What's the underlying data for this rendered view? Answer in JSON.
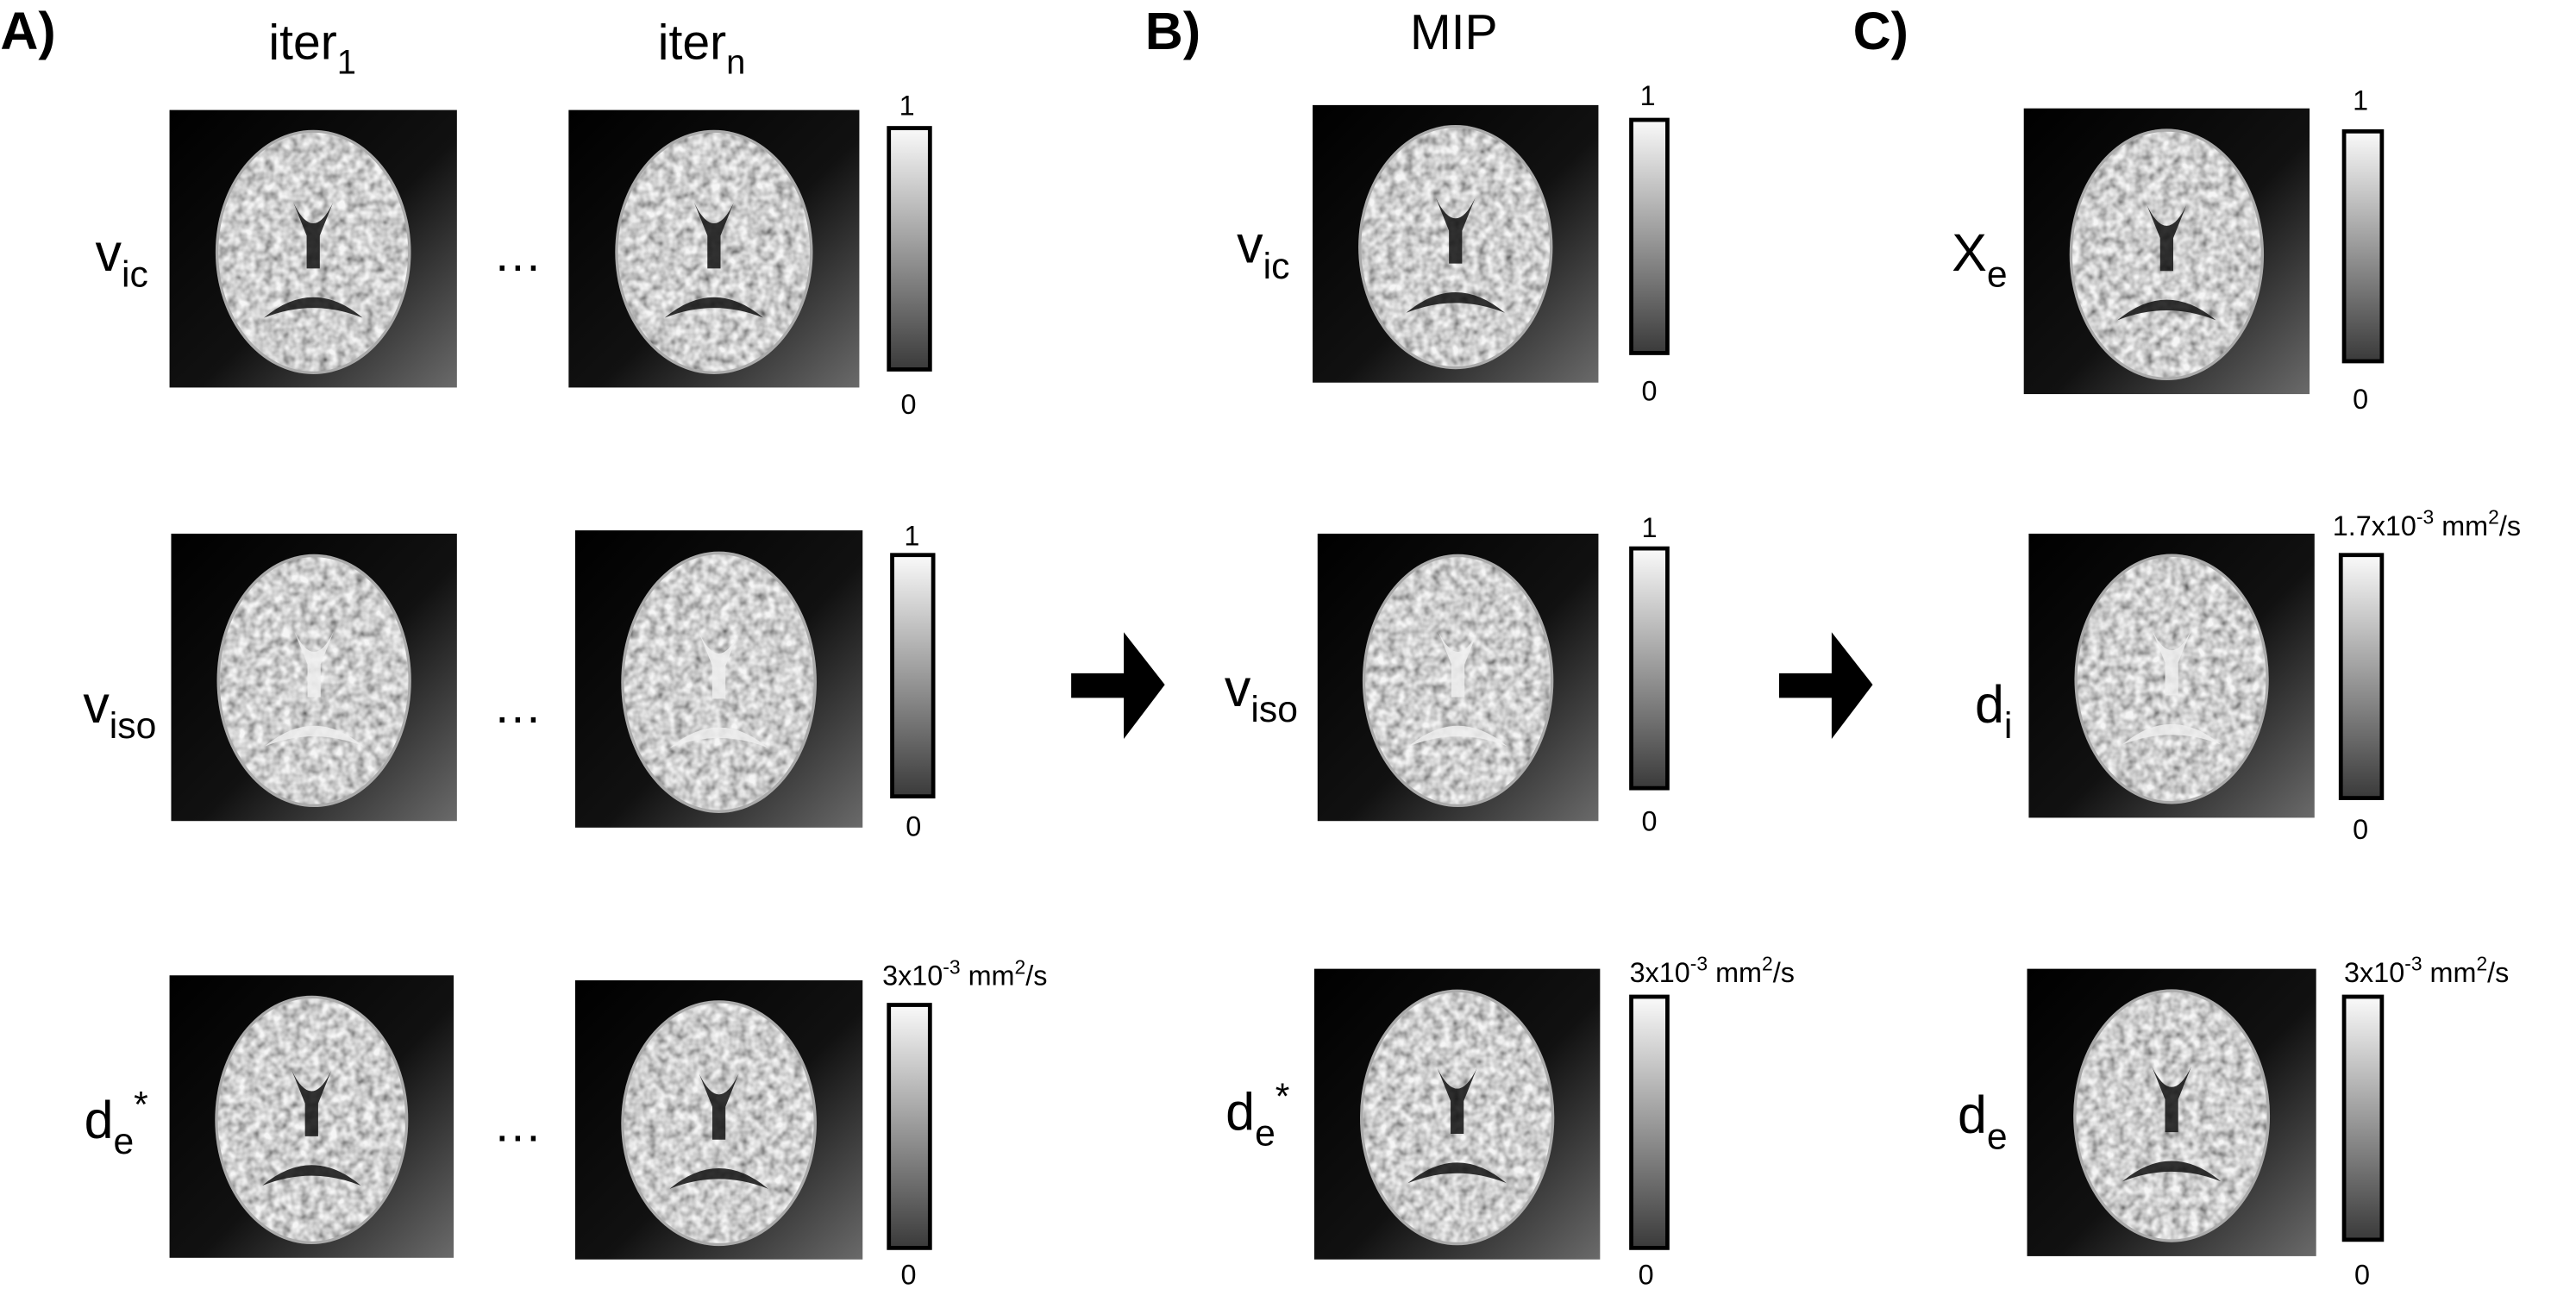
{
  "panel_labels": [
    "A)",
    "B)",
    "C)"
  ],
  "column_headers": [
    {
      "base": "iter",
      "sub": "1"
    },
    {
      "base": "iter",
      "sub": "n"
    },
    {
      "base": "MIP"
    }
  ],
  "ellipses": [
    "…",
    "…",
    "…"
  ],
  "panels": [
    {
      "rows": [
        {
          "label": {
            "base": "v",
            "sub": "ic"
          },
          "scale_max": {
            "pre": "1"
          },
          "scale_min": {
            "pre": "0"
          }
        },
        {
          "label": {
            "base": "v",
            "sub": "iso"
          },
          "scale_max": {
            "pre": "1"
          },
          "scale_min": {
            "pre": "0"
          }
        },
        {
          "label": {
            "base": "d",
            "sub": "e",
            "sup": "*"
          },
          "scale_max": {
            "pre": "3x10",
            "exp": "-3",
            "unit": " mm",
            "unit_exp": "2",
            "post": "/s"
          },
          "scale_min": {
            "pre": "0"
          }
        }
      ]
    },
    {
      "rows": [
        {
          "label": {
            "base": "v",
            "sub": "ic"
          },
          "scale_max": {
            "pre": "1"
          },
          "scale_min": {
            "pre": "0"
          }
        },
        {
          "label": {
            "base": "v",
            "sub": "iso"
          },
          "scale_max": {
            "pre": "1"
          },
          "scale_min": {
            "pre": "0"
          }
        },
        {
          "label": {
            "base": "d",
            "sub": "e",
            "sup": "*"
          },
          "scale_max": {
            "pre": "3x10",
            "exp": "-3",
            "unit": " mm",
            "unit_exp": "2",
            "post": "/s"
          },
          "scale_min": {
            "pre": "0"
          }
        }
      ]
    },
    {
      "rows": [
        {
          "label": {
            "base": "X",
            "sub": "e"
          },
          "scale_max": {
            "pre": "1"
          },
          "scale_min": {
            "pre": "0"
          }
        },
        {
          "label": {
            "base": "d",
            "sub": "i"
          },
          "scale_max": {
            "pre": "1.7x10",
            "exp": "-3",
            "unit": " mm",
            "unit_exp": "2",
            "post": "/s"
          },
          "scale_min": {
            "pre": "0"
          }
        },
        {
          "label": {
            "base": "d",
            "sub": "e"
          },
          "scale_max": {
            "pre": "3x10",
            "exp": "-3",
            "unit": " mm",
            "unit_exp": "2",
            "post": "/s"
          },
          "scale_min": {
            "pre": "0"
          }
        }
      ]
    }
  ]
}
